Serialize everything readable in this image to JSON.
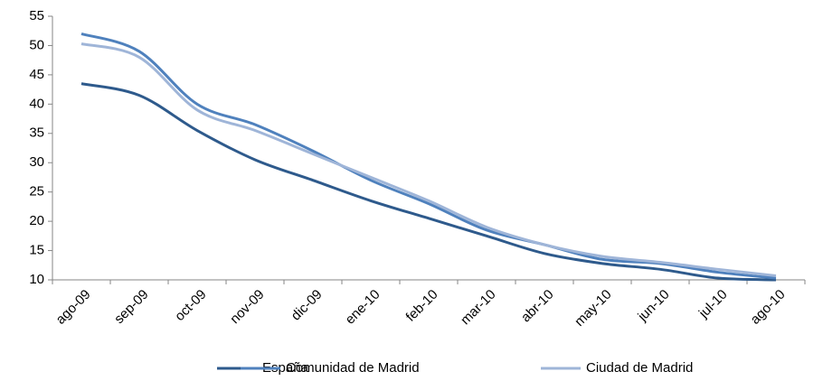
{
  "chart_data": {
    "type": "line",
    "categories": [
      "ago-09",
      "sep-09",
      "oct-09",
      "nov-09",
      "dic-09",
      "ene-10",
      "feb-10",
      "mar-10",
      "abr-10",
      "may-10",
      "jun-10",
      "jul-10",
      "ago-10"
    ],
    "series": [
      {
        "name": "España",
        "color": "#2e5a8c",
        "values": [
          43.5,
          41.5,
          35.5,
          30.5,
          27,
          23.5,
          20.5,
          17.5,
          14.5,
          12.8,
          11.8,
          10.3,
          10.0
        ]
      },
      {
        "name": "Comunidad de Madrid",
        "color": "#4f81bd",
        "values": [
          52,
          49,
          40,
          36.5,
          32,
          27,
          23,
          18.5,
          16,
          13.5,
          12.8,
          11.3,
          10.3
        ]
      },
      {
        "name": "Ciudad de Madrid",
        "color": "#9fb5d8",
        "values": [
          50.3,
          48,
          39,
          35.5,
          31.5,
          27.5,
          23.5,
          19,
          16,
          14,
          13,
          11.8,
          10.7
        ]
      }
    ],
    "ylim": [
      10,
      55
    ],
    "yticks": [
      10,
      15,
      20,
      25,
      30,
      35,
      40,
      45,
      50,
      55
    ],
    "grid": false,
    "legend": "bottom"
  }
}
